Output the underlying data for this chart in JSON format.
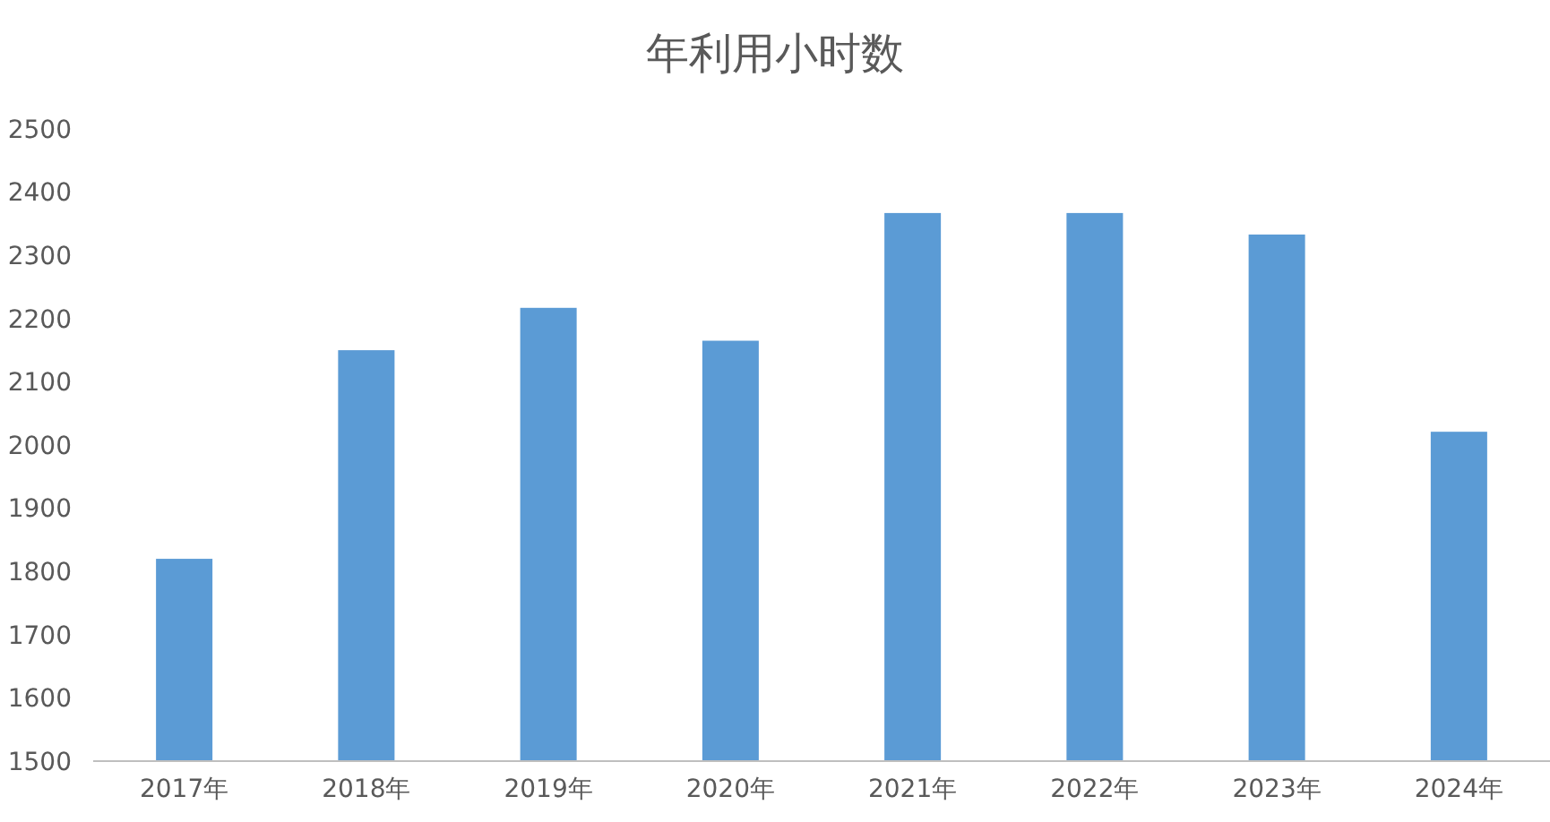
{
  "chart_data": {
    "type": "bar",
    "title": "年利用小时数",
    "categories": [
      "2017年",
      "2018年",
      "2019年",
      "2020年",
      "2021年",
      "2022年",
      "2023年",
      "2024年"
    ],
    "values": [
      1820,
      2150,
      2217,
      2165,
      2367,
      2367,
      2333,
      2021
    ],
    "color": "#5b9bd5",
    "ylim": [
      1500,
      2500
    ],
    "yticks": [
      1500,
      1600,
      1700,
      1800,
      1900,
      2000,
      2100,
      2200,
      2300,
      2400,
      2500
    ],
    "grid": false
  }
}
